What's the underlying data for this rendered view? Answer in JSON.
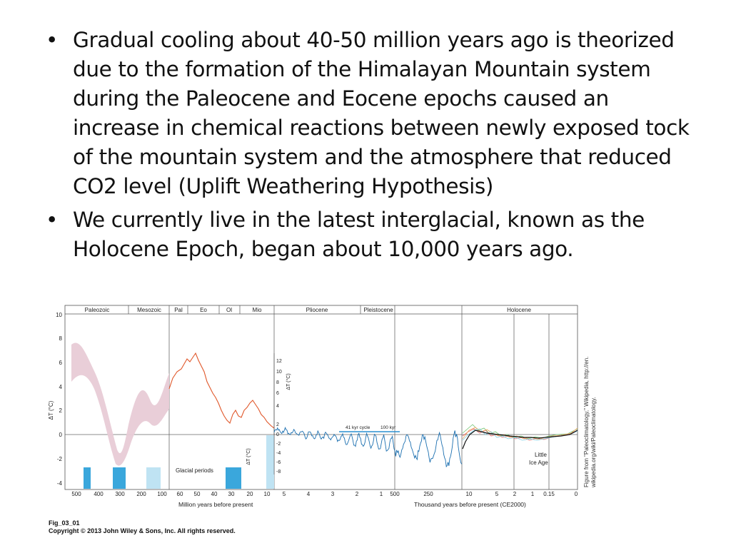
{
  "bullets": [
    "Gradual cooling about 40-50 million years ago is theorized due to the formation of the Himalayan Mountain system during the Paleocene and Eocene epochs caused an increase in chemical reactions between newly exposed tock of the mountain system and the atmosphere that reduced CO2 level (Uplift Weathering Hypothesis)",
    "We currently live in the latest interglacial, known as the Holocene Epoch, began about 10,000 years  ago."
  ],
  "bullet_glyph": "•",
  "figure": {
    "eras": [
      "Paleozoic",
      "Mesozoic",
      "Pal",
      "Eo",
      "Ol",
      "Mio",
      "Pliocene",
      "Pleistocene",
      "Holocene"
    ],
    "left_y_ticks": [
      "10",
      "8",
      "6",
      "4",
      "2",
      "0",
      "-2",
      "-4"
    ],
    "left_y_label": "ΔT (°C)",
    "inner_y_ticks": [
      "12",
      "10",
      "8",
      "6",
      "4",
      "2",
      "0",
      "-2",
      "-4",
      "-6",
      "-8"
    ],
    "inner_y_label": "ΔT (°C)",
    "glacial_label": "Glacial periods",
    "x_ticks_million": [
      "500",
      "400",
      "300",
      "200",
      "100",
      "60",
      "50",
      "40",
      "30",
      "20",
      "10",
      "5",
      "4",
      "3",
      "2",
      "1",
      "500"
    ],
    "x_ticks_thousand": [
      "250",
      "10",
      "5",
      "2",
      "1",
      "0.15",
      "0"
    ],
    "x_label_million": "Million years before present",
    "x_label_thousand": "Thousand years before present (CE2000)",
    "cycle_41": "41 kyr cycle",
    "cycle_100": "100 kyr",
    "little_ice_age": [
      "Little",
      "Ice Age"
    ],
    "credit_line1": "Figure from \"Paleoclimatology,\" Wikipedia, http://en.",
    "credit_line2": "wikipedia.org/wiki/Paleoclimatology.",
    "colors": {
      "paleozoic_band": "#e8cbd6",
      "cenozoic": "#e0572a",
      "plio_pleisto": "#1b6fb0",
      "glacial_dark": "#3aa7dc",
      "glacial_light": "#bfe3f3"
    }
  },
  "caption": {
    "fig_id": "Fig_03_01",
    "copyright": "Copyright © 2013 John Wiley & Sons, Inc. All rights reserved."
  }
}
